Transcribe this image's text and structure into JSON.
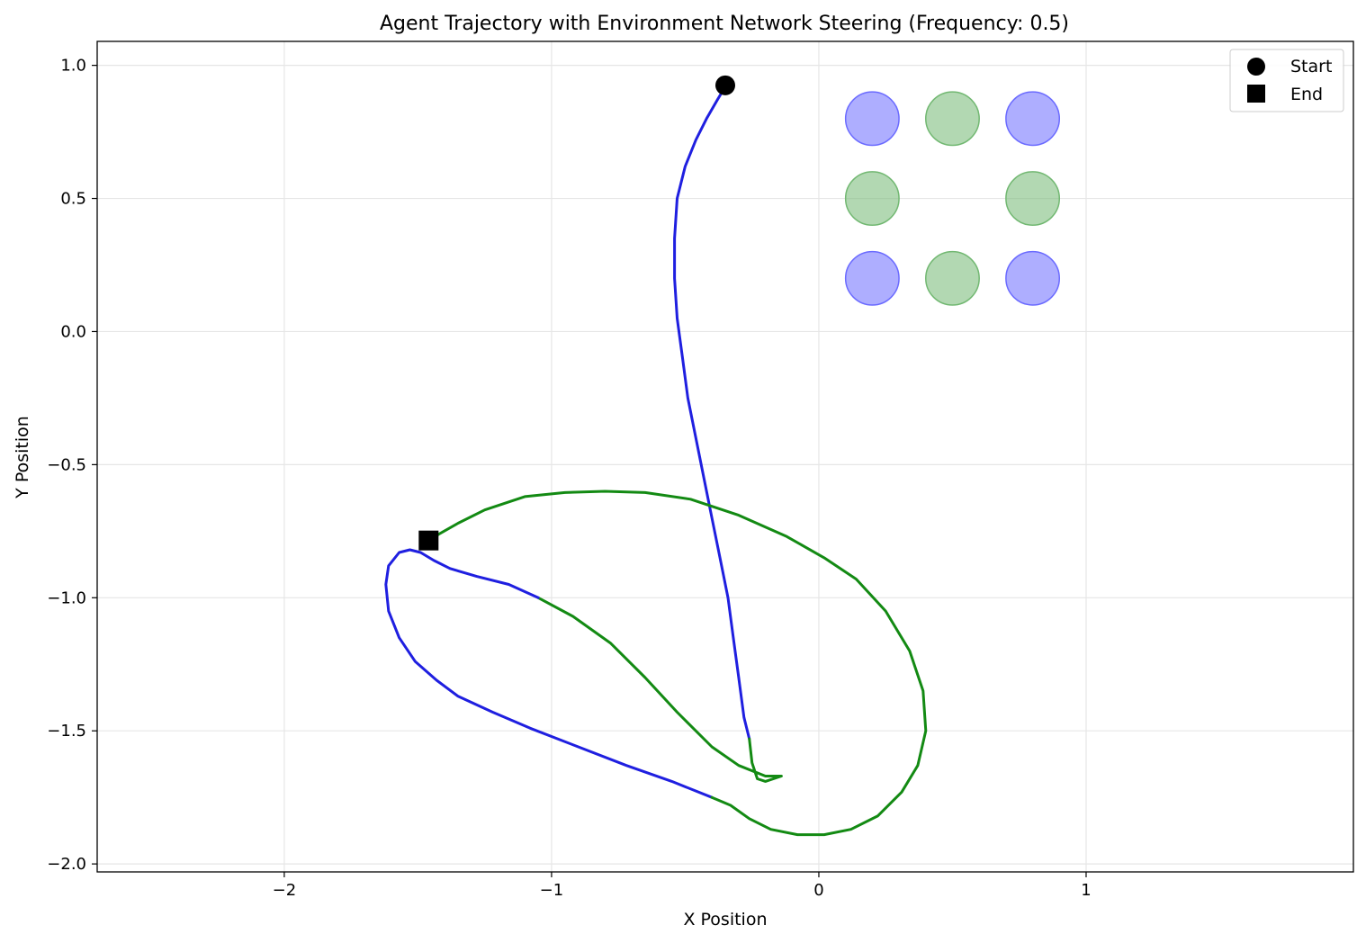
{
  "chart_data": {
    "type": "line",
    "title": "Agent Trajectory with Environment Network Steering (Frequency: 0.5)",
    "xlabel": "X Position",
    "ylabel": "Y Position",
    "xlim": [
      -2.7,
      2.0
    ],
    "ylim": [
      -2.03,
      1.09
    ],
    "xticks": [
      -2,
      -1,
      0,
      1
    ],
    "yticks": [
      1.0,
      0.5,
      0.0,
      -0.5,
      -1.0,
      -1.5,
      -2.0
    ],
    "xtick_labels": [
      "−2",
      "−1",
      "0",
      "1"
    ],
    "ytick_labels": [
      "1.0",
      "0.5",
      "0.0",
      "−0.5",
      "−1.0",
      "−1.5",
      "−2.0"
    ],
    "grid": true,
    "legend_position": "top-right",
    "legend": [
      {
        "label": "Start",
        "marker": "circle"
      },
      {
        "label": "End",
        "marker": "square"
      }
    ],
    "colors": {
      "blue": "#1f1fe0",
      "green": "#138a13",
      "blue_node": "#6b6bff",
      "green_node": "#72b872"
    },
    "nodes": [
      {
        "x": 0.2,
        "y": 0.8,
        "color": "blue"
      },
      {
        "x": 0.5,
        "y": 0.8,
        "color": "green"
      },
      {
        "x": 0.8,
        "y": 0.8,
        "color": "blue"
      },
      {
        "x": 0.2,
        "y": 0.5,
        "color": "green"
      },
      {
        "x": 0.8,
        "y": 0.5,
        "color": "green"
      },
      {
        "x": 0.2,
        "y": 0.2,
        "color": "blue"
      },
      {
        "x": 0.5,
        "y": 0.2,
        "color": "green"
      },
      {
        "x": 0.8,
        "y": 0.2,
        "color": "blue"
      }
    ],
    "node_radius": 0.1,
    "start": {
      "x": -0.35,
      "y": 0.925
    },
    "end": {
      "x": -1.46,
      "y": -0.785
    },
    "segments": [
      {
        "color": "blue",
        "points": [
          [
            -0.35,
            0.92
          ],
          [
            -0.38,
            0.87
          ],
          [
            -0.42,
            0.8
          ],
          [
            -0.46,
            0.72
          ],
          [
            -0.5,
            0.62
          ],
          [
            -0.53,
            0.5
          ],
          [
            -0.54,
            0.35
          ],
          [
            -0.54,
            0.2
          ],
          [
            -0.53,
            0.05
          ],
          [
            -0.51,
            -0.1
          ],
          [
            -0.49,
            -0.25
          ],
          [
            -0.46,
            -0.4
          ],
          [
            -0.43,
            -0.55
          ],
          [
            -0.4,
            -0.7
          ],
          [
            -0.37,
            -0.85
          ],
          [
            -0.34,
            -1.0
          ],
          [
            -0.32,
            -1.15
          ],
          [
            -0.3,
            -1.3
          ],
          [
            -0.28,
            -1.45
          ],
          [
            -0.26,
            -1.53
          ]
        ]
      },
      {
        "color": "green",
        "points": [
          [
            -0.26,
            -1.53
          ],
          [
            -0.25,
            -1.62
          ],
          [
            -0.23,
            -1.68
          ],
          [
            -0.2,
            -1.69
          ],
          [
            -0.14,
            -1.67
          ],
          [
            -0.2,
            -1.67
          ],
          [
            -0.3,
            -1.63
          ],
          [
            -0.4,
            -1.56
          ],
          [
            -0.53,
            -1.43
          ],
          [
            -0.65,
            -1.3
          ],
          [
            -0.78,
            -1.17
          ],
          [
            -0.92,
            -1.07
          ],
          [
            -1.05,
            -1.0
          ]
        ]
      },
      {
        "color": "blue",
        "points": [
          [
            -1.05,
            -1.0
          ],
          [
            -1.16,
            -0.95
          ],
          [
            -1.28,
            -0.92
          ],
          [
            -1.38,
            -0.89
          ],
          [
            -1.44,
            -0.86
          ],
          [
            -1.49,
            -0.83
          ],
          [
            -1.53,
            -0.82
          ],
          [
            -1.57,
            -0.83
          ],
          [
            -1.61,
            -0.88
          ],
          [
            -1.62,
            -0.95
          ],
          [
            -1.61,
            -1.05
          ],
          [
            -1.57,
            -1.15
          ],
          [
            -1.51,
            -1.24
          ],
          [
            -1.43,
            -1.31
          ],
          [
            -1.35,
            -1.37
          ],
          [
            -1.22,
            -1.43
          ],
          [
            -1.08,
            -1.49
          ],
          [
            -0.9,
            -1.56
          ],
          [
            -0.72,
            -1.63
          ],
          [
            -0.55,
            -1.69
          ],
          [
            -0.4,
            -1.75
          ]
        ]
      },
      {
        "color": "green",
        "points": [
          [
            -0.4,
            -1.75
          ],
          [
            -0.33,
            -1.78
          ],
          [
            -0.26,
            -1.83
          ],
          [
            -0.18,
            -1.87
          ],
          [
            -0.08,
            -1.89
          ],
          [
            0.02,
            -1.89
          ],
          [
            0.12,
            -1.87
          ],
          [
            0.22,
            -1.82
          ],
          [
            0.31,
            -1.73
          ],
          [
            0.37,
            -1.63
          ],
          [
            0.4,
            -1.5
          ],
          [
            0.39,
            -1.35
          ],
          [
            0.34,
            -1.2
          ],
          [
            0.25,
            -1.05
          ],
          [
            0.14,
            -0.93
          ],
          [
            0.02,
            -0.85
          ],
          [
            -0.12,
            -0.77
          ],
          [
            -0.3,
            -0.69
          ],
          [
            -0.48,
            -0.63
          ],
          [
            -0.65,
            -0.605
          ],
          [
            -0.8,
            -0.6
          ],
          [
            -0.95,
            -0.605
          ],
          [
            -1.1,
            -0.62
          ],
          [
            -1.25,
            -0.67
          ],
          [
            -1.35,
            -0.72
          ],
          [
            -1.42,
            -0.76
          ],
          [
            -1.46,
            -0.785
          ]
        ]
      }
    ]
  }
}
